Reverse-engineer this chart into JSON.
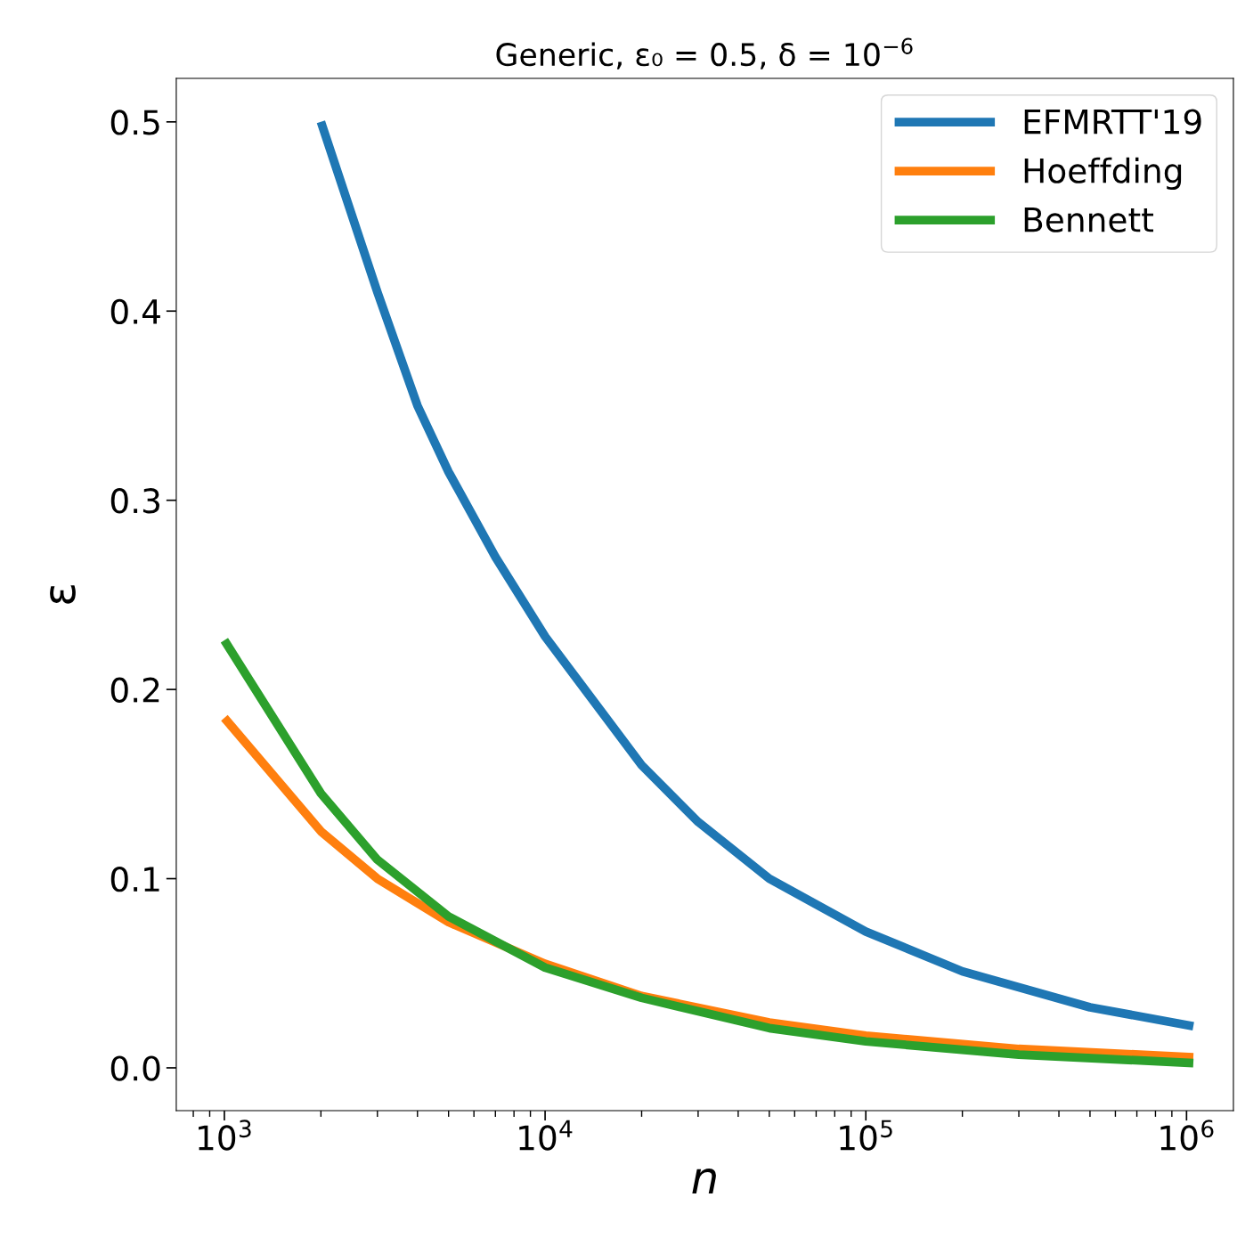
{
  "chart_data": {
    "type": "line",
    "title": "Generic, ε₀ = 0.5, δ = 10$^{−6}$",
    "xlabel": "n",
    "ylabel": "ε",
    "log": "x",
    "grid": false,
    "legend": "top right",
    "line_style": "solid",
    "marker": "none",
    "xlim": [
      708,
      1400000
    ],
    "ylim": [
      -0.0226,
      0.523
    ],
    "xticks": [
      {
        "value": 1000,
        "label": "10$^{3}$"
      },
      {
        "value": 10000,
        "label": "10$^{4}$"
      },
      {
        "value": 100000,
        "label": "10$^{5}$"
      },
      {
        "value": 1000000,
        "label": "10$^{6}$"
      }
    ],
    "yticks": [
      {
        "value": 0,
        "label": "0.0"
      },
      0.1,
      0.2,
      0.3,
      0.4,
      0.5
    ],
    "series": [
      {
        "name": "EFMRTT'19",
        "color": "#1f77b4",
        "x": [
          2000,
          3000,
          4000,
          5000,
          7000,
          10000,
          20000,
          30000,
          50000,
          100000,
          200000,
          500000,
          1050000
        ],
        "values": [
          0.5,
          0.41,
          0.35,
          0.315,
          0.27,
          0.228,
          0.16,
          0.13,
          0.1,
          0.072,
          0.051,
          0.032,
          0.022
        ]
      },
      {
        "name": "Hoeffding",
        "color": "#ff7f0e",
        "x": [
          1000,
          2000,
          3000,
          5000,
          10000,
          20000,
          50000,
          100000,
          300000,
          1050000
        ],
        "values": [
          0.185,
          0.125,
          0.1,
          0.077,
          0.055,
          0.038,
          0.024,
          0.017,
          0.01,
          0.0056
        ]
      },
      {
        "name": "Bennett",
        "color": "#2ca02c",
        "x": [
          1000,
          2000,
          3000,
          5000,
          10000,
          20000,
          50000,
          100000,
          300000,
          1050000
        ],
        "values": [
          0.226,
          0.145,
          0.11,
          0.08,
          0.053,
          0.037,
          0.021,
          0.014,
          0.007,
          0.0025
        ]
      }
    ]
  }
}
